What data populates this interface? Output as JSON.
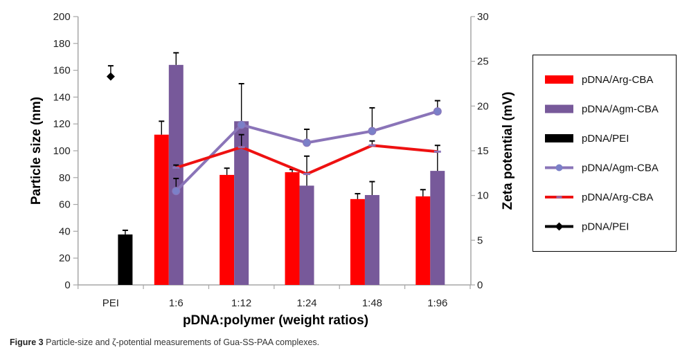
{
  "caption": {
    "label": "Figure 3",
    "text": "Particle-size and ζ-potential measurements of Gua-SS-PAA complexes."
  },
  "colors": {
    "arg_bar": "#ff0000",
    "agm_bar": "#77599a",
    "pei_bar": "#000000",
    "agm_line": "#8a74b8",
    "agm_marker": "#7b80c8",
    "arg_line": "#ee1111",
    "pei_marker": "#000000",
    "axis": "#a6a6a6",
    "error": "#000000"
  },
  "chart_data": {
    "type": "bar",
    "title": "",
    "xlabel": "pDNA:polymer (weight ratios)",
    "ylabel": "Particle size (nm)",
    "y2label": "Zeta potential (mV)",
    "categories": [
      "PEI",
      "1:6",
      "1:12",
      "1:24",
      "1:48",
      "1:96"
    ],
    "ylim": [
      0,
      200
    ],
    "yticks": [
      0,
      20,
      40,
      60,
      80,
      100,
      120,
      140,
      160,
      180,
      200
    ],
    "y2lim": [
      0,
      30
    ],
    "y2ticks": [
      0,
      5,
      10,
      15,
      20,
      25,
      30
    ],
    "grid": false,
    "legend_position": "right",
    "bar_series": [
      {
        "name": "pDNA/Arg-CBA",
        "axis": "left",
        "color_key": "arg_bar",
        "slot": 0,
        "values": [
          null,
          112,
          82,
          84,
          64,
          66
        ],
        "error_upper": [
          null,
          122,
          87,
          86,
          68,
          71
        ]
      },
      {
        "name": "pDNA/Agm-CBA",
        "axis": "left",
        "color_key": "agm_bar",
        "slot": 1,
        "values": [
          null,
          164,
          122,
          74,
          67,
          85
        ],
        "error_upper": [
          null,
          173,
          150,
          96,
          77,
          104
        ]
      },
      {
        "name": "pDNA/PEI",
        "axis": "left",
        "color_key": "pei_bar",
        "slot": 2,
        "values": [
          37.6,
          null,
          null,
          null,
          null,
          null
        ],
        "error_upper": [
          40.7,
          null,
          null,
          null,
          null,
          null
        ]
      }
    ],
    "line_series": [
      {
        "name": "pDNA/Agm-CBA",
        "axis": "right",
        "color_key": "agm_line",
        "marker": "circle",
        "marker_color_key": "agm_marker",
        "values": [
          null,
          10.5,
          17.9,
          15.9,
          17.2,
          19.4
        ],
        "error_upper": [
          null,
          11.9,
          18.2,
          17.4,
          19.8,
          20.6
        ]
      },
      {
        "name": "pDNA/Arg-CBA",
        "axis": "right",
        "color_key": "arg_line",
        "marker": "dash",
        "values": [
          null,
          13.1,
          15.4,
          12.4,
          15.6,
          14.9
        ],
        "error_upper": [
          null,
          13.4,
          16.8,
          12.4,
          16.1,
          14.9
        ]
      },
      {
        "name": "pDNA/PEI",
        "axis": "right",
        "color_key": "pei_marker",
        "marker": "diamond",
        "values": [
          23.3,
          null,
          null,
          null,
          null,
          null
        ],
        "error_upper": [
          24.5,
          null,
          null,
          null,
          null,
          null
        ]
      }
    ],
    "legend": [
      {
        "label": "pDNA/Arg-CBA",
        "kind": "bar",
        "color_key": "arg_bar"
      },
      {
        "label": "pDNA/Agm-CBA",
        "kind": "bar",
        "color_key": "agm_bar"
      },
      {
        "label": "pDNA/PEI",
        "kind": "bar",
        "color_key": "pei_bar"
      },
      {
        "label": "pDNA/Agm-CBA",
        "kind": "line-circle",
        "color_key": "agm_line"
      },
      {
        "label": "pDNA/Arg-CBA",
        "kind": "line-dash",
        "color_key": "arg_line"
      },
      {
        "label": "pDNA/PEI",
        "kind": "line-diamond",
        "color_key": "pei_marker"
      }
    ]
  }
}
